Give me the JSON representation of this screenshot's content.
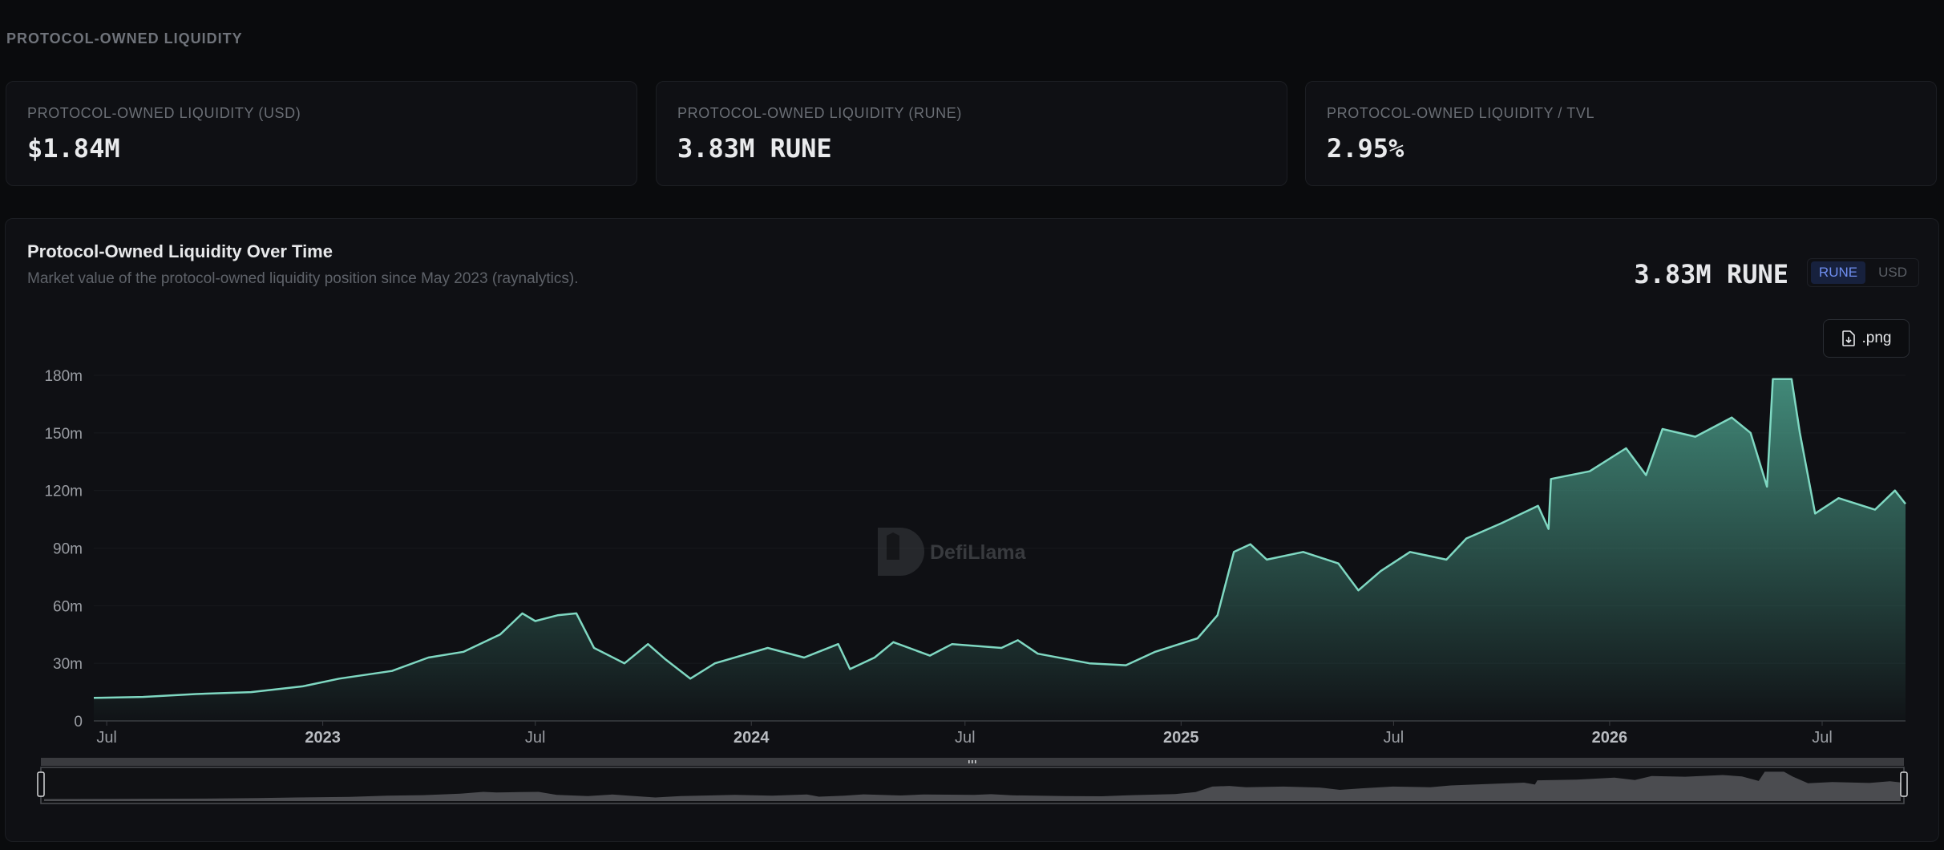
{
  "page": {
    "section_title": "PROTOCOL-OWNED LIQUIDITY"
  },
  "cards": [
    {
      "label": "PROTOCOL-OWNED LIQUIDITY (USD)",
      "value": "$1.84M"
    },
    {
      "label": "PROTOCOL-OWNED LIQUIDITY (RUNE)",
      "value": "3.83M RUNE"
    },
    {
      "label": "PROTOCOL-OWNED LIQUIDITY / TVL",
      "value": "2.95%"
    }
  ],
  "panel": {
    "title": "Protocol-Owned Liquidity Over Time",
    "subtitle": "Market value of the protocol-owned liquidity position since May 2023 (raynalytics).",
    "headline_value": "3.83M RUNE",
    "toggle": {
      "active": "RUNE",
      "inactive": "USD"
    },
    "export_label": ".png",
    "watermark": "DefiLlama"
  },
  "colors": {
    "line": "#7fd8c2",
    "fill_top": "#4a9e8a",
    "accent": "#6f8ef0"
  },
  "icons": {
    "export": "file-download-icon",
    "watermark": "defillama-logo-icon"
  },
  "chart_data": {
    "type": "area",
    "title": "Protocol-Owned Liquidity Over Time",
    "xlabel": "",
    "ylabel": "",
    "ylim": [
      0,
      180000000
    ],
    "y_ticks": [
      {
        "value": 0,
        "label": "0"
      },
      {
        "value": 30000000,
        "label": "30m"
      },
      {
        "value": 60000000,
        "label": "60m"
      },
      {
        "value": 90000000,
        "label": "90m"
      },
      {
        "value": 120000000,
        "label": "120m"
      },
      {
        "value": 150000000,
        "label": "150m"
      },
      {
        "value": 180000000,
        "label": "180m"
      }
    ],
    "x_range": [
      "2022-06-20",
      "2026-09-10"
    ],
    "x_ticks": [
      {
        "date": "2022-07-01",
        "label": "Jul",
        "bold": false
      },
      {
        "date": "2023-01-01",
        "label": "2023",
        "bold": true
      },
      {
        "date": "2023-07-01",
        "label": "Jul",
        "bold": false
      },
      {
        "date": "2024-01-01",
        "label": "2024",
        "bold": true
      },
      {
        "date": "2024-07-01",
        "label": "Jul",
        "bold": false
      },
      {
        "date": "2025-01-01",
        "label": "2025",
        "bold": true
      },
      {
        "date": "2025-07-01",
        "label": "Jul",
        "bold": false
      },
      {
        "date": "2026-01-01",
        "label": "2026",
        "bold": true
      },
      {
        "date": "2026-07-01",
        "label": "Jul",
        "bold": false
      }
    ],
    "grid": true,
    "legend": "none",
    "series": [
      {
        "points": [
          [
            "2022-06-20",
            12000000
          ],
          [
            "2022-08-01",
            12500000
          ],
          [
            "2022-09-15",
            14000000
          ],
          [
            "2022-11-01",
            15000000
          ],
          [
            "2022-12-15",
            18000000
          ],
          [
            "2023-01-15",
            22000000
          ],
          [
            "2023-03-01",
            26000000
          ],
          [
            "2023-04-01",
            33000000
          ],
          [
            "2023-05-01",
            36000000
          ],
          [
            "2023-06-01",
            45000000
          ],
          [
            "2023-06-20",
            56000000
          ],
          [
            "2023-07-01",
            52000000
          ],
          [
            "2023-07-20",
            55000000
          ],
          [
            "2023-08-05",
            56000000
          ],
          [
            "2023-08-20",
            38000000
          ],
          [
            "2023-09-15",
            30000000
          ],
          [
            "2023-10-05",
            40000000
          ],
          [
            "2023-10-20",
            32000000
          ],
          [
            "2023-11-10",
            22000000
          ],
          [
            "2023-12-01",
            30000000
          ],
          [
            "2024-01-15",
            38000000
          ],
          [
            "2024-02-15",
            33000000
          ],
          [
            "2024-03-15",
            40000000
          ],
          [
            "2024-03-25",
            27000000
          ],
          [
            "2024-04-15",
            33000000
          ],
          [
            "2024-05-01",
            41000000
          ],
          [
            "2024-06-01",
            34000000
          ],
          [
            "2024-06-20",
            40000000
          ],
          [
            "2024-08-01",
            38000000
          ],
          [
            "2024-08-15",
            42000000
          ],
          [
            "2024-09-01",
            35000000
          ],
          [
            "2024-10-15",
            30000000
          ],
          [
            "2024-11-15",
            29000000
          ],
          [
            "2024-12-10",
            36000000
          ],
          [
            "2025-01-15",
            43000000
          ],
          [
            "2025-02-01",
            55000000
          ],
          [
            "2025-02-15",
            88000000
          ],
          [
            "2025-03-01",
            92000000
          ],
          [
            "2025-03-15",
            84000000
          ],
          [
            "2025-04-15",
            88000000
          ],
          [
            "2025-05-15",
            82000000
          ],
          [
            "2025-06-01",
            68000000
          ],
          [
            "2025-06-20",
            78000000
          ],
          [
            "2025-07-15",
            88000000
          ],
          [
            "2025-08-15",
            84000000
          ],
          [
            "2025-09-01",
            95000000
          ],
          [
            "2025-10-01",
            103000000
          ],
          [
            "2025-11-01",
            112000000
          ],
          [
            "2025-11-10",
            100000000
          ],
          [
            "2025-11-12",
            126000000
          ],
          [
            "2025-12-15",
            130000000
          ],
          [
            "2026-01-15",
            142000000
          ],
          [
            "2026-02-01",
            128000000
          ],
          [
            "2026-02-15",
            152000000
          ],
          [
            "2026-03-15",
            148000000
          ],
          [
            "2026-04-15",
            158000000
          ],
          [
            "2026-05-01",
            150000000
          ],
          [
            "2026-05-15",
            122000000
          ],
          [
            "2026-05-20",
            178000000
          ],
          [
            "2026-06-05",
            178000000
          ],
          [
            "2026-06-12",
            150000000
          ],
          [
            "2026-06-25",
            108000000
          ],
          [
            "2026-07-15",
            116000000
          ],
          [
            "2026-08-15",
            110000000
          ],
          [
            "2026-09-01",
            120000000
          ],
          [
            "2026-09-10",
            113000000
          ]
        ]
      }
    ]
  }
}
